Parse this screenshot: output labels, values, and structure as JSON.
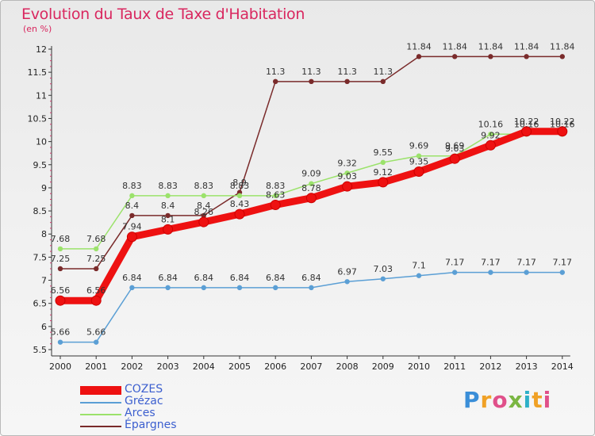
{
  "title": "Evolution du Taux de Taxe d'Habitation",
  "subtitle": "(en %)",
  "logo": "Proxiti",
  "chart_data": {
    "type": "line",
    "x": [
      "2000",
      "2001",
      "2002",
      "2003",
      "2004",
      "2005",
      "2006",
      "2007",
      "2008",
      "2009",
      "2010",
      "2011",
      "2012",
      "2013",
      "2014"
    ],
    "ylim": [
      5.5,
      12
    ],
    "yticks": [
      "5.5",
      "6",
      "6.5",
      "7",
      "7.5",
      "8",
      "8.5",
      "9",
      "9.5",
      "10",
      "10.5",
      "11",
      "11.5",
      "12"
    ],
    "grid": false,
    "legend_position": "bottom-left",
    "series": [
      {
        "name": "COZES",
        "color": "#ee1111",
        "values": [
          6.56,
          6.56,
          7.94,
          8.1,
          8.26,
          8.43,
          8.63,
          8.78,
          9.03,
          9.12,
          9.35,
          9.63,
          9.92,
          10.22,
          10.22
        ],
        "labels": [
          "6.56",
          "6.56",
          "7.94",
          "8.1",
          "8.26",
          "8.43",
          "8.63",
          "8.78",
          "9.03",
          "9.12",
          "9.35",
          "9.63",
          "9.92",
          "10.22",
          "10.22"
        ]
      },
      {
        "name": "Grézac",
        "color": "#5b9fd5",
        "values": [
          5.66,
          5.66,
          6.84,
          6.84,
          6.84,
          6.84,
          6.84,
          6.84,
          6.97,
          7.03,
          7.1,
          7.17,
          7.17,
          7.17,
          7.17
        ],
        "labels": [
          "5.66",
          "5.66",
          "6.84",
          "6.84",
          "6.84",
          "6.84",
          "6.84",
          "6.84",
          "6.97",
          "7.03",
          "7.1",
          "7.17",
          "7.17",
          "7.17",
          "7.17"
        ]
      },
      {
        "name": "Arces",
        "color": "#9be26b",
        "values": [
          7.68,
          7.68,
          8.83,
          8.83,
          8.83,
          8.83,
          8.83,
          9.09,
          9.32,
          9.55,
          9.69,
          9.69,
          10.16,
          10.16,
          10.16
        ],
        "labels": [
          "7.68",
          "7.68",
          "8.83",
          "8.83",
          "8.83",
          "8.83",
          "8.83",
          "9.09",
          "9.32",
          "9.55",
          "9.69",
          "9.69",
          "10.16",
          "10.16",
          "10.16"
        ]
      },
      {
        "name": "Épargnes",
        "color": "#7a2b2b",
        "values": [
          7.25,
          7.25,
          8.4,
          8.4,
          8.4,
          8.9,
          11.3,
          11.3,
          11.3,
          11.3,
          11.84,
          11.84,
          11.84,
          11.84,
          11.84
        ],
        "labels": [
          "7.25",
          "7.25",
          "8.4",
          "8.4",
          "8.4",
          "8.9",
          "11.3",
          "11.3",
          "11.3",
          "11.3",
          "11.84",
          "11.84",
          "11.84",
          "11.84",
          "11.84"
        ]
      }
    ]
  }
}
